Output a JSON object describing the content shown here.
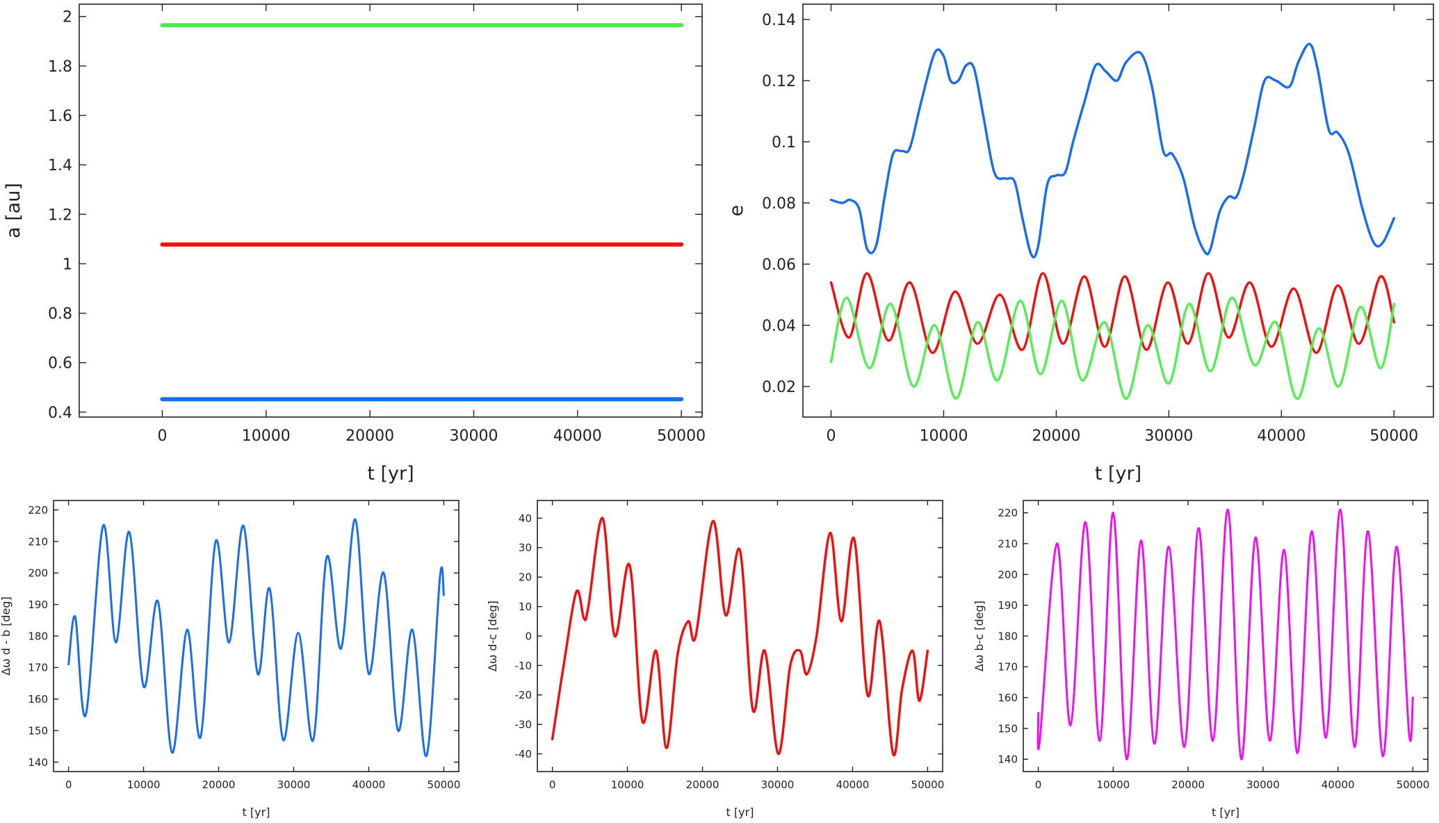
{
  "chart_data": [
    {
      "id": "semi-major-axis",
      "type": "line",
      "title": "",
      "xlabel": "t [yr]",
      "ylabel": "a [au]",
      "xlim": [
        -8000,
        52000
      ],
      "ylim": [
        0.38,
        2.05
      ],
      "xticks": [
        0,
        10000,
        20000,
        30000,
        40000,
        50000
      ],
      "yticks": [
        0.4,
        0.6,
        0.8,
        1,
        1.2,
        1.4,
        1.6,
        1.8,
        2
      ],
      "grid": false,
      "series": [
        {
          "color": "#44ee44",
          "x": [
            0,
            50000
          ],
          "y": [
            1.965,
            1.965
          ]
        },
        {
          "color": "#ee1111",
          "x": [
            0,
            50000
          ],
          "y": [
            1.078,
            1.078
          ]
        },
        {
          "color": "#1a6ee8",
          "x": [
            0,
            50000
          ],
          "y": [
            0.452,
            0.452
          ]
        }
      ]
    },
    {
      "id": "eccentricity",
      "type": "line",
      "title": "",
      "xlabel": "t [yr]",
      "ylabel": "e",
      "xlim": [
        -2500,
        53500
      ],
      "ylim": [
        0.01,
        0.145
      ],
      "xticks": [
        0,
        10000,
        20000,
        30000,
        40000,
        50000
      ],
      "yticks": [
        0.02,
        0.04,
        0.06,
        0.08,
        0.1,
        0.12,
        0.14
      ],
      "grid": false,
      "series": [
        {
          "color": "#1a6ee8",
          "x": [
            0,
            1000,
            1700,
            2500,
            3200,
            4000,
            4800,
            5500,
            6300,
            7000,
            8000,
            9200,
            10000,
            10600,
            11300,
            12000,
            12700,
            13500,
            14500,
            15500,
            16300,
            17000,
            17800,
            18400,
            19200,
            20000,
            20800,
            21500,
            22500,
            23500,
            24400,
            25400,
            26200,
            27500,
            28500,
            29500,
            30300,
            31300,
            32300,
            33200,
            33700,
            34500,
            35300,
            36000,
            36700,
            37600,
            38500,
            39500,
            40700,
            41500,
            42500,
            43200,
            44200,
            45000,
            46000,
            47200,
            48200,
            49000,
            50000
          ],
          "y": [
            0.081,
            0.08,
            0.081,
            0.078,
            0.065,
            0.066,
            0.083,
            0.096,
            0.097,
            0.098,
            0.113,
            0.129,
            0.128,
            0.12,
            0.12,
            0.125,
            0.124,
            0.109,
            0.09,
            0.088,
            0.087,
            0.075,
            0.063,
            0.066,
            0.086,
            0.089,
            0.09,
            0.1,
            0.113,
            0.125,
            0.123,
            0.12,
            0.126,
            0.129,
            0.118,
            0.097,
            0.096,
            0.088,
            0.072,
            0.064,
            0.065,
            0.077,
            0.082,
            0.082,
            0.09,
            0.105,
            0.12,
            0.12,
            0.118,
            0.126,
            0.132,
            0.124,
            0.104,
            0.103,
            0.096,
            0.078,
            0.067,
            0.067,
            0.075
          ]
        },
        {
          "color": "#ee1111",
          "x": [
            0,
            1600,
            3200,
            5100,
            7000,
            9000,
            11000,
            13000,
            15000,
            17000,
            18800,
            20600,
            22500,
            24300,
            26100,
            28000,
            29900,
            31700,
            33500,
            35300,
            37200,
            39100,
            41100,
            43100,
            45000,
            46900,
            48800,
            50000
          ],
          "y": [
            0.054,
            0.036,
            0.057,
            0.035,
            0.054,
            0.031,
            0.051,
            0.034,
            0.05,
            0.032,
            0.057,
            0.034,
            0.056,
            0.033,
            0.056,
            0.032,
            0.054,
            0.034,
            0.057,
            0.036,
            0.054,
            0.033,
            0.052,
            0.031,
            0.053,
            0.034,
            0.056,
            0.041
          ]
        },
        {
          "color": "#55ee55",
          "x": [
            0,
            1400,
            3400,
            5300,
            7300,
            9200,
            11100,
            13000,
            14800,
            16800,
            18600,
            20500,
            22300,
            24300,
            26200,
            28100,
            30000,
            31800,
            33700,
            35600,
            37600,
            39500,
            41400,
            43300,
            45100,
            47000,
            48800,
            50000
          ],
          "y": [
            0.028,
            0.049,
            0.026,
            0.047,
            0.02,
            0.04,
            0.016,
            0.041,
            0.022,
            0.048,
            0.024,
            0.048,
            0.022,
            0.041,
            0.016,
            0.04,
            0.021,
            0.047,
            0.025,
            0.049,
            0.027,
            0.041,
            0.016,
            0.039,
            0.02,
            0.046,
            0.026,
            0.047
          ]
        }
      ]
    },
    {
      "id": "delta-omega-d-b",
      "type": "line",
      "title": "",
      "xlabel": "t [yr]",
      "ylabel": "Δω d - b [deg]",
      "xlim": [
        -2000,
        52000
      ],
      "ylim": [
        137,
        223
      ],
      "xticks": [
        0,
        10000,
        20000,
        30000,
        40000,
        50000
      ],
      "yticks": [
        140,
        150,
        160,
        170,
        180,
        190,
        200,
        210,
        220
      ],
      "grid": false,
      "series": [
        {
          "color": "#1a6ee8",
          "x": [
            0,
            900,
            2300,
            4600,
            6300,
            8100,
            10000,
            11900,
            13800,
            15800,
            17600,
            19600,
            21400,
            23300,
            25200,
            26800,
            28600,
            30600,
            32600,
            34400,
            36300,
            38200,
            40000,
            42000,
            43900,
            45800,
            47700,
            49500,
            50000
          ],
          "y": [
            171,
            186,
            155,
            215,
            178,
            213,
            164,
            191,
            143,
            182,
            148,
            210,
            178,
            215,
            168,
            195,
            147,
            181,
            147,
            205,
            176,
            217,
            168,
            200,
            150,
            182,
            142,
            199,
            193
          ]
        }
      ]
    },
    {
      "id": "delta-omega-d-c",
      "type": "line",
      "title": "",
      "xlabel": "t [yr]",
      "ylabel": "Δω d-c [deg]",
      "xlim": [
        -2000,
        52000
      ],
      "ylim": [
        -46,
        46
      ],
      "xticks": [
        0,
        10000,
        20000,
        30000,
        40000,
        50000
      ],
      "yticks": [
        -40,
        -30,
        -20,
        -10,
        0,
        10,
        20,
        30,
        40
      ],
      "grid": false,
      "series": [
        {
          "color": "#ee1111",
          "x": [
            0,
            1500,
            3200,
            4200,
            4800,
            6700,
            8300,
            10300,
            12000,
            13800,
            15200,
            16700,
            18100,
            19100,
            21400,
            23100,
            25000,
            26700,
            28300,
            30100,
            31700,
            33000,
            33900,
            35200,
            37000,
            38500,
            40200,
            42000,
            43600,
            45400,
            46600,
            48000,
            48900,
            50000
          ],
          "y": [
            -35,
            -10,
            15,
            6,
            10,
            40,
            0,
            24,
            -29,
            -5,
            -38,
            -6,
            5,
            0,
            39,
            7,
            29,
            -25,
            -5,
            -40,
            -10,
            -5,
            -13,
            0,
            35,
            5,
            33,
            -20,
            5,
            -40,
            -18,
            -5,
            -22,
            -5
          ]
        }
      ]
    },
    {
      "id": "delta-omega-b-c",
      "type": "line",
      "title": "",
      "xlabel": "t [yr]",
      "ylabel": "Δω b-c [deg]",
      "xlim": [
        -2000,
        52000
      ],
      "ylim": [
        136,
        224
      ],
      "xticks": [
        0,
        10000,
        20000,
        30000,
        40000,
        50000
      ],
      "yticks": [
        140,
        150,
        160,
        170,
        180,
        190,
        200,
        210,
        220
      ],
      "grid": false,
      "series": [
        {
          "color": "#ee11ee",
          "x": [
            0,
            200,
            2500,
            4300,
            6300,
            8200,
            10000,
            11800,
            13700,
            15500,
            17400,
            19500,
            21400,
            23300,
            25300,
            27100,
            29000,
            30900,
            32800,
            34600,
            36500,
            38400,
            40300,
            42200,
            44000,
            46000,
            47800,
            49500,
            50000
          ],
          "y": [
            155,
            146,
            210,
            151,
            217,
            146,
            220,
            140,
            211,
            145,
            209,
            144,
            215,
            146,
            221,
            140,
            212,
            146,
            208,
            142,
            214,
            147,
            221,
            144,
            214,
            141,
            209,
            148,
            160
          ]
        }
      ]
    }
  ]
}
